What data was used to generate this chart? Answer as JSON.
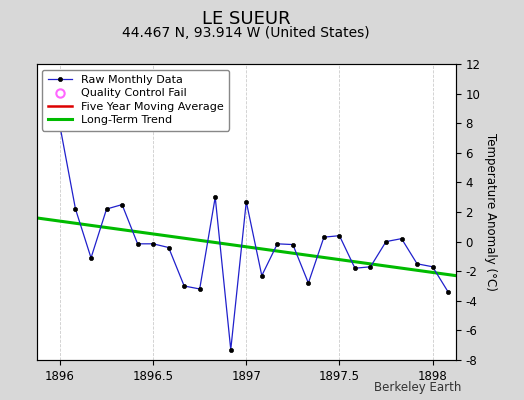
{
  "title": "LE SUEUR",
  "subtitle": "44.467 N, 93.914 W (United States)",
  "credit": "Berkeley Earth",
  "ylabel": "Temperature Anomaly (°C)",
  "xlim": [
    1895.875,
    1898.125
  ],
  "ylim": [
    -8,
    12
  ],
  "xticks": [
    1896,
    1896.5,
    1897,
    1897.5,
    1898
  ],
  "yticks": [
    -8,
    -6,
    -4,
    -2,
    0,
    2,
    4,
    6,
    8,
    10,
    12
  ],
  "raw_x": [
    1896.0,
    1896.0833,
    1896.1667,
    1896.25,
    1896.3333,
    1896.4167,
    1896.5,
    1896.5833,
    1896.6667,
    1896.75,
    1896.8333,
    1896.9167,
    1897.0,
    1897.0833,
    1897.1667,
    1897.25,
    1897.3333,
    1897.4167,
    1897.5,
    1897.5833,
    1897.6667,
    1897.75,
    1897.8333,
    1897.9167,
    1898.0,
    1898.0833
  ],
  "raw_y": [
    7.8,
    2.2,
    -1.1,
    2.2,
    2.5,
    -0.15,
    -0.15,
    -0.4,
    -3.0,
    -3.2,
    3.0,
    -7.3,
    2.7,
    -2.3,
    -0.15,
    -0.2,
    -2.8,
    0.3,
    0.4,
    -1.8,
    -1.7,
    0.0,
    0.2,
    -1.5,
    -1.7,
    -3.4
  ],
  "qc_fail_x": [
    1896.0
  ],
  "qc_fail_y": [
    7.8
  ],
  "trend_x": [
    1895.875,
    1898.125
  ],
  "trend_y": [
    1.6,
    -2.3
  ],
  "bg_color": "#d8d8d8",
  "plot_bg_color": "#ffffff",
  "raw_line_color": "#2020cc",
  "raw_marker_color": "#000000",
  "qc_color": "#ff66ff",
  "trend_color": "#00bb00",
  "mavg_color": "#dd0000",
  "title_fontsize": 13,
  "subtitle_fontsize": 10,
  "credit_fontsize": 8.5,
  "axis_fontsize": 8.5,
  "legend_fontsize": 8
}
